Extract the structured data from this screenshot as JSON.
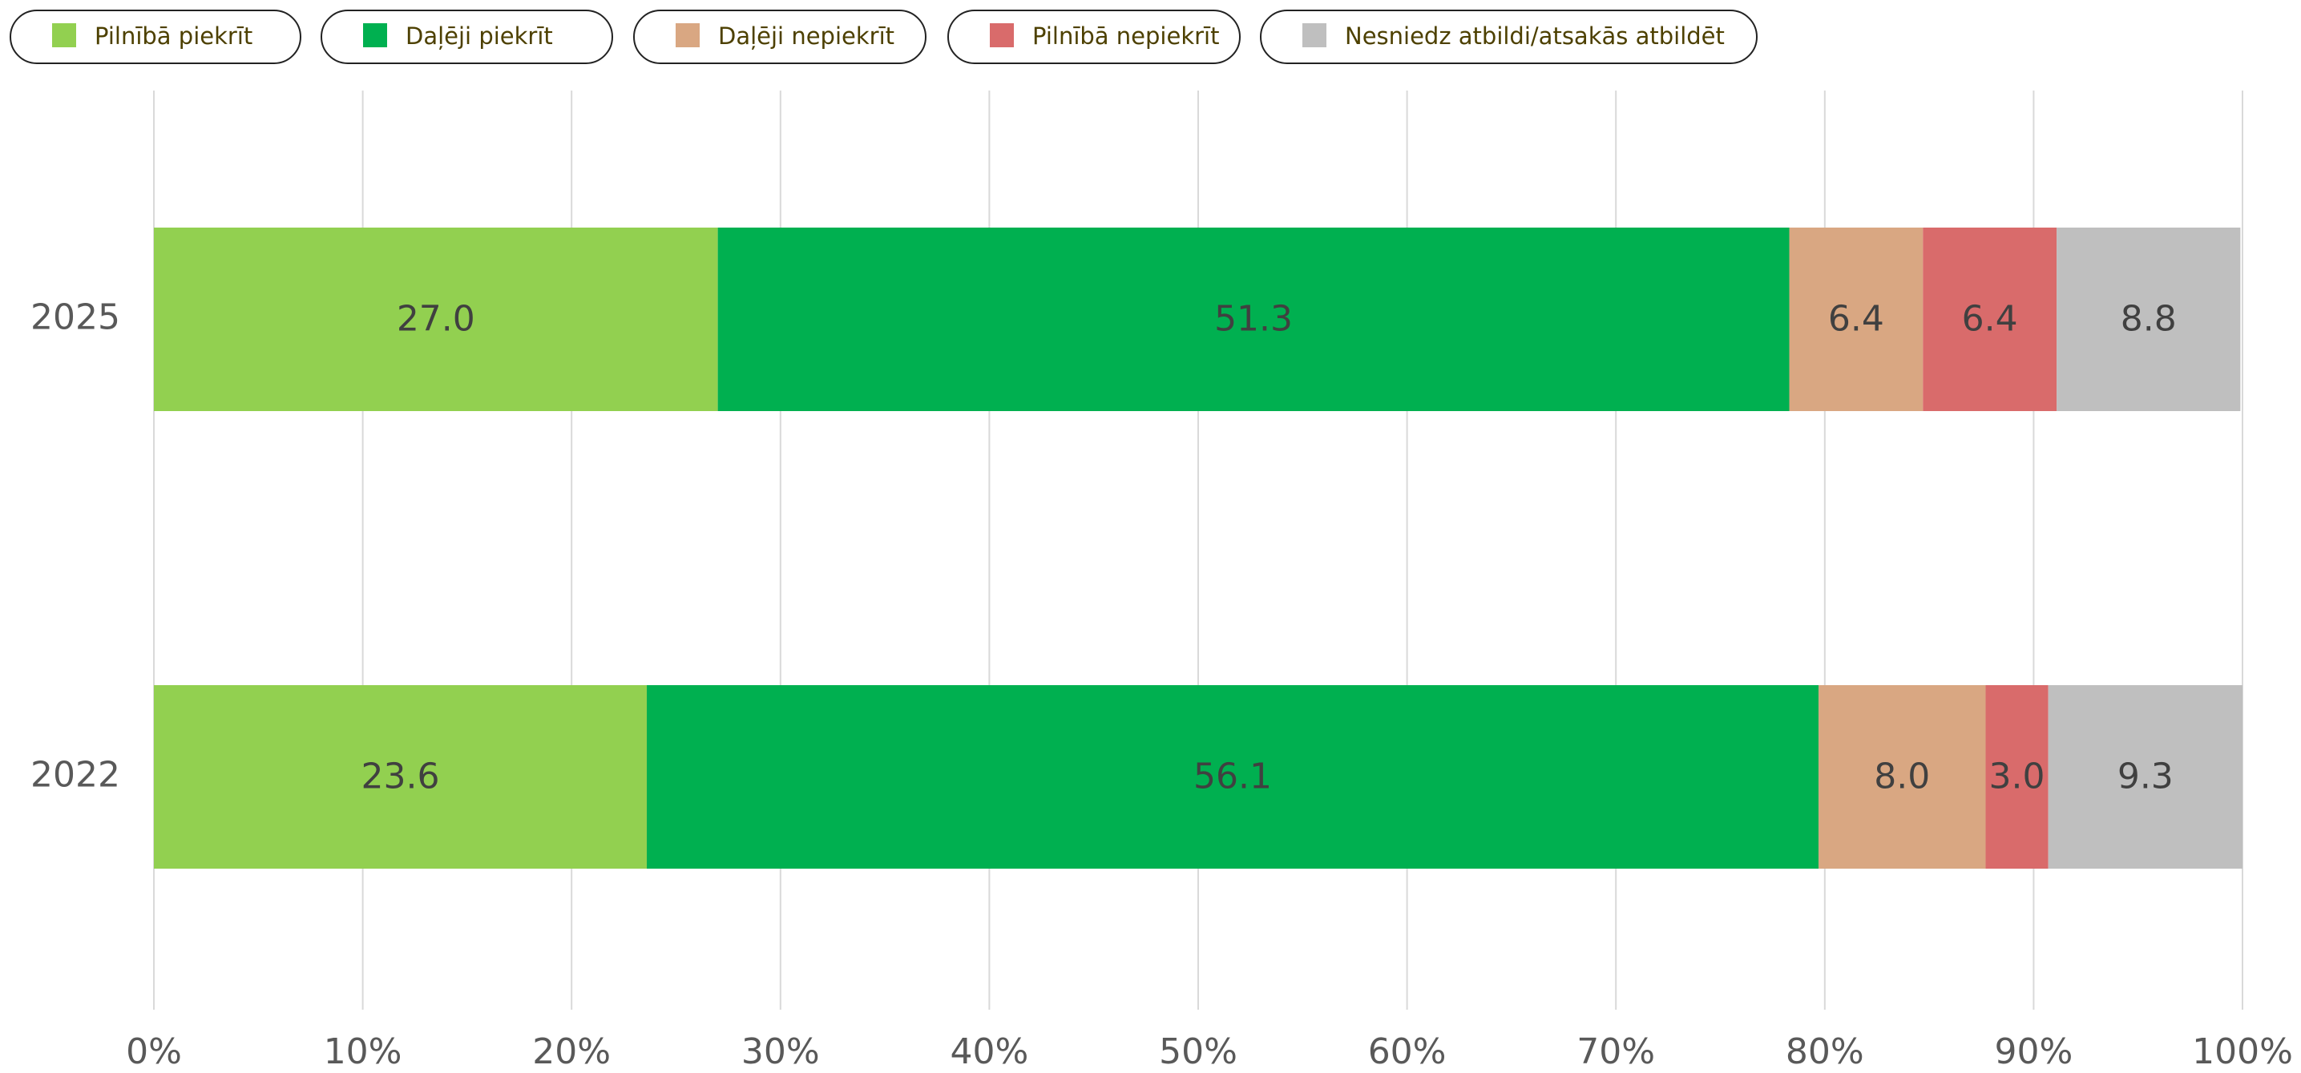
{
  "chart_data": {
    "type": "bar",
    "orientation": "horizontal",
    "stacked": true,
    "categories": [
      "2025",
      "2022"
    ],
    "series": [
      {
        "name": "Pilnībā piekrīt",
        "color": "#92d050",
        "values": [
          27.0,
          23.6
        ],
        "value_labels": [
          "27.0",
          "23.6"
        ]
      },
      {
        "name": "Daļēji piekrīt",
        "color": "#00b050",
        "values": [
          51.3,
          56.1
        ],
        "value_labels": [
          "51.3",
          "56.1"
        ]
      },
      {
        "name": "Daļēji nepiekrīt",
        "color": "#d9a782",
        "values": [
          6.4,
          8.0
        ],
        "value_labels": [
          "6.4",
          "8.0"
        ]
      },
      {
        "name": "Pilnībā nepiekrīt",
        "color": "#d96b6b",
        "values": [
          6.4,
          3.0
        ],
        "value_labels": [
          "6.4",
          "3.0"
        ]
      },
      {
        "name": "Nesniedz atbildi/atsakās atbildēt",
        "color": "#bfbfbf",
        "values": [
          8.8,
          9.3
        ],
        "value_labels": [
          "8.8",
          "9.3"
        ]
      }
    ],
    "xlim": [
      0,
      100
    ],
    "xticks": [
      {
        "value": 0,
        "label": "0%"
      },
      {
        "value": 10,
        "label": "10%"
      },
      {
        "value": 20,
        "label": "20%"
      },
      {
        "value": 30,
        "label": "30%"
      },
      {
        "value": 40,
        "label": "40%"
      },
      {
        "value": 50,
        "label": "50%"
      },
      {
        "value": 60,
        "label": "60%"
      },
      {
        "value": 70,
        "label": "70%"
      },
      {
        "value": 80,
        "label": "80%"
      },
      {
        "value": 90,
        "label": "90%"
      },
      {
        "value": 100,
        "label": "100%"
      }
    ],
    "grid": true,
    "legend": "top"
  }
}
